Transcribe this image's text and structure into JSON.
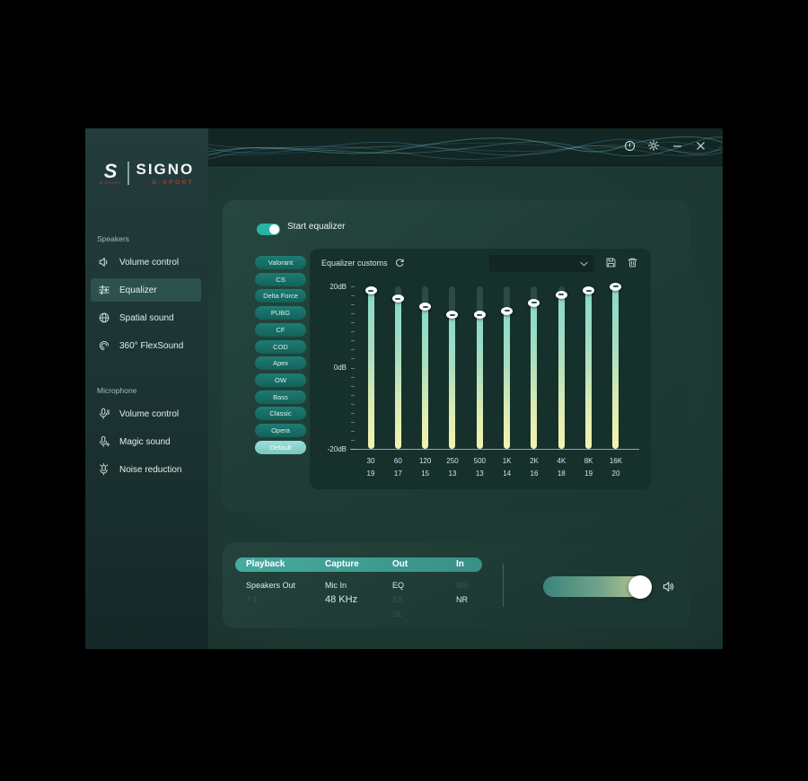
{
  "colors": {
    "accent": "#2fb9a8",
    "bar_gradient_top": "#87dacd",
    "bar_gradient_bottom": "#f3f3ae",
    "preset_pill": "#17756d",
    "preset_active": "#8fd8d0",
    "table_header": "#3d9e94",
    "brand_red": "#c0322e"
  },
  "titlebar": {
    "icons": [
      "info",
      "settings",
      "minimize",
      "close"
    ]
  },
  "logo": {
    "brand": "SIGNO",
    "sub": "E-SPORT",
    "mark": "S"
  },
  "sidebar": {
    "sections": [
      {
        "label": "Speakers",
        "items": [
          {
            "label": "Volume control",
            "icon": "speaker",
            "selected": false
          },
          {
            "label": "Equalizer",
            "icon": "equalizer",
            "selected": true
          },
          {
            "label": "Spatial sound",
            "icon": "spatial",
            "selected": false
          },
          {
            "label": "360° FlexSound",
            "icon": "flexsound",
            "selected": false
          }
        ]
      },
      {
        "label": "Microphone",
        "items": [
          {
            "label": "Volume control",
            "icon": "mic-volume",
            "selected": false
          },
          {
            "label": "Magic sound",
            "icon": "mic-magic",
            "selected": false
          },
          {
            "label": "Noise reduction",
            "icon": "mic-noise",
            "selected": false
          }
        ]
      }
    ]
  },
  "equalizer": {
    "toggle_label": "Start equalizer",
    "toggle_on": true,
    "presets": [
      "Valorant",
      "CS",
      "Delta Force",
      "PUBG",
      "CF",
      "COD",
      "Apex",
      "OW",
      "Bass",
      "Classic",
      "Opera",
      "Default"
    ],
    "active_preset": "Default",
    "customs_label": "Equalizer customs",
    "custom_select_value": "",
    "chart_data": {
      "type": "bar",
      "title": "Equalizer customs",
      "categories": [
        "30",
        "60",
        "120",
        "250",
        "500",
        "1K",
        "2K",
        "4K",
        "8K",
        "16K"
      ],
      "values": [
        19,
        17,
        15,
        13,
        13,
        14,
        16,
        18,
        19,
        20
      ],
      "ylabel": "dB",
      "ylim": [
        -20,
        20
      ],
      "ytick_labels": [
        "20dB",
        "0dB",
        "-20dB"
      ],
      "grid": false,
      "legend": false
    }
  },
  "status_panel": {
    "columns": [
      {
        "header": "Playback",
        "cells": [
          {
            "text": "Speakers Out",
            "dim": false
          },
          {
            "text": "7.1",
            "dim": true
          }
        ]
      },
      {
        "header": "Capture",
        "cells": [
          {
            "text": "Mic In",
            "dim": false
          },
          {
            "text": "48 KHz",
            "dim": false,
            "large": true
          }
        ]
      },
      {
        "header": "Out",
        "cells": [
          {
            "text": "EQ",
            "dim": false
          },
          {
            "text": "SS",
            "dim": true
          },
          {
            "text": "SL",
            "dim": true
          }
        ]
      },
      {
        "header": "In",
        "cells": [
          {
            "text": "MS",
            "dim": true
          },
          {
            "text": "NR",
            "dim": false
          }
        ]
      }
    ]
  },
  "volume": {
    "knob_position": 0.9
  }
}
